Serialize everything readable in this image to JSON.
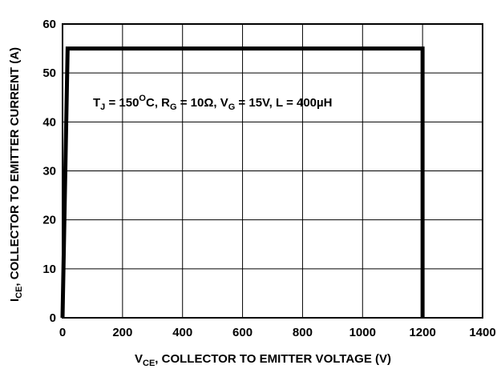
{
  "chart_data": {
    "type": "line",
    "x_axis": {
      "label_main": "V",
      "label_sub": "CE",
      "label_rest": ", COLLECTOR TO EMITTER VOLTAGE (V)",
      "lim": [
        0,
        1400
      ],
      "ticks": [
        0,
        200,
        400,
        600,
        800,
        1000,
        1200,
        1400
      ],
      "tick_labels": [
        "0",
        "200",
        "400",
        "600",
        "800",
        "1000",
        "1200",
        "1400"
      ]
    },
    "y_axis": {
      "label_main": "I",
      "label_sub": "CE",
      "label_rest": ", COLLECTOR TO EMITTER CURRENT (A)",
      "lim": [
        0,
        60
      ],
      "ticks": [
        0,
        10,
        20,
        30,
        40,
        50,
        60
      ],
      "tick_labels": [
        "0",
        "10",
        "20",
        "30",
        "40",
        "50",
        "60"
      ]
    },
    "grid": true,
    "series": [
      {
        "x": [
          0,
          17,
          1200,
          1200
        ],
        "y": [
          0,
          55,
          55,
          0
        ],
        "color": "#000000"
      }
    ],
    "annotation": {
      "p1": "T",
      "p1_sub": "J",
      "p2": " = 150",
      "p2_sup": "O",
      "p3": "C, R",
      "p3_sub": "G",
      "p4": " = 10Ω, V",
      "p4_sub": "G",
      "p5": " = 15V, L = 400µH"
    }
  }
}
